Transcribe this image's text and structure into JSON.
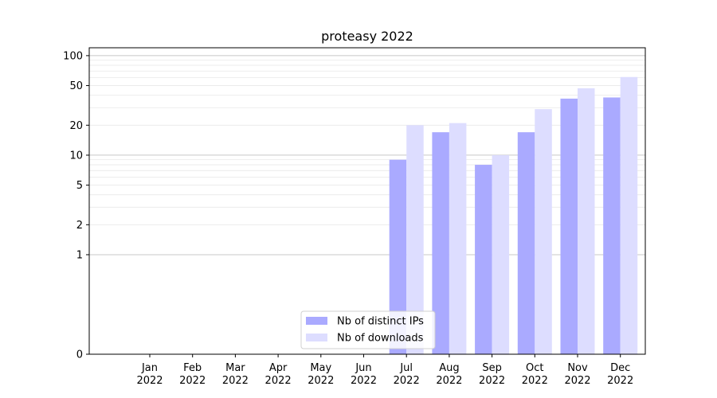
{
  "chart_data": {
    "type": "bar",
    "title": "proteasy 2022",
    "xlabel": "",
    "ylabel": "",
    "categories": [
      [
        "Jan",
        "2022"
      ],
      [
        "Feb",
        "2022"
      ],
      [
        "Mar",
        "2022"
      ],
      [
        "Apr",
        "2022"
      ],
      [
        "May",
        "2022"
      ],
      [
        "Jun",
        "2022"
      ],
      [
        "Jul",
        "2022"
      ],
      [
        "Aug",
        "2022"
      ],
      [
        "Sep",
        "2022"
      ],
      [
        "Oct",
        "2022"
      ],
      [
        "Nov",
        "2022"
      ],
      [
        "Dec",
        "2022"
      ]
    ],
    "series": [
      {
        "name": "Nb of distinct IPs",
        "color": "#aaaaff",
        "values": [
          0,
          0,
          0,
          0,
          0,
          0,
          9,
          17,
          8,
          17,
          37,
          38
        ]
      },
      {
        "name": "Nb of downloads",
        "color": "#ddddff",
        "values": [
          0,
          0,
          0,
          0,
          0,
          0,
          20,
          21,
          10,
          29,
          47,
          61
        ]
      }
    ],
    "y_scale": "symlog",
    "ylim": [
      0,
      120
    ],
    "y_ticks": [
      0,
      1,
      2,
      5,
      10,
      20,
      50,
      100
    ],
    "y_tick_labels": [
      "0",
      "1",
      "2",
      "5",
      "10",
      "20",
      "50",
      "100"
    ],
    "grid": true,
    "legend_position": "bottom-center"
  }
}
